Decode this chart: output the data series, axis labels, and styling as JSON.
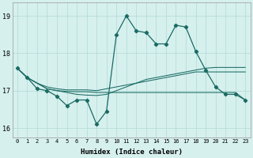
{
  "xlabel": "Humidex (Indice chaleur)",
  "bg_color": "#d6f0ee",
  "grid_color": "#b8ddd9",
  "line_color": "#1a6b63",
  "x": [
    0,
    1,
    2,
    3,
    4,
    5,
    6,
    7,
    8,
    9,
    10,
    11,
    12,
    13,
    14,
    15,
    16,
    17,
    18,
    19,
    20,
    21,
    22,
    23
  ],
  "main_line": [
    17.6,
    17.35,
    17.05,
    17.0,
    16.85,
    16.6,
    16.75,
    16.75,
    16.1,
    16.45,
    18.5,
    19.0,
    18.6,
    18.55,
    18.25,
    18.25,
    18.75,
    18.7,
    18.05,
    17.55,
    17.1,
    16.9,
    16.9,
    16.75
  ],
  "upper_line": [
    17.6,
    17.35,
    17.2,
    17.05,
    17.0,
    16.95,
    16.9,
    16.88,
    16.87,
    16.9,
    17.0,
    17.1,
    17.2,
    17.3,
    17.35,
    17.4,
    17.45,
    17.5,
    17.55,
    17.6,
    17.62,
    17.62,
    17.62,
    17.62
  ],
  "mid_line": [
    17.6,
    17.35,
    17.2,
    17.1,
    17.05,
    17.02,
    17.02,
    17.02,
    17.0,
    17.05,
    17.1,
    17.15,
    17.2,
    17.25,
    17.3,
    17.35,
    17.4,
    17.45,
    17.5,
    17.5,
    17.5,
    17.5,
    17.5,
    17.5
  ],
  "lower_line": [
    17.6,
    17.35,
    17.2,
    17.05,
    17.0,
    16.98,
    16.97,
    16.97,
    16.95,
    16.95,
    16.95,
    16.95,
    16.95,
    16.95,
    16.95,
    16.95,
    16.95,
    16.95,
    16.95,
    16.95,
    16.95,
    16.95,
    16.95,
    16.75
  ],
  "ylim": [
    15.75,
    19.35
  ],
  "yticks": [
    16,
    17,
    18,
    19
  ],
  "xlim": [
    -0.5,
    23.5
  ]
}
